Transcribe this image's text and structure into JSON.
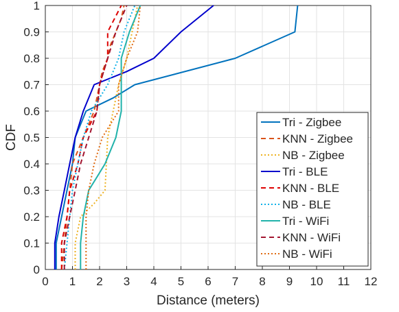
{
  "chart_data": {
    "type": "line",
    "title": "",
    "xlabel": "Distance (meters)",
    "ylabel": "CDF",
    "xlim": [
      0,
      12
    ],
    "ylim": [
      0,
      1
    ],
    "xticks": [
      "0",
      "1",
      "2",
      "3",
      "4",
      "5",
      "6",
      "7",
      "8",
      "9",
      "10",
      "11",
      "12"
    ],
    "yticks": [
      "0",
      "0.1",
      "0.2",
      "0.3",
      "0.4",
      "0.5",
      "0.6",
      "0.7",
      "0.8",
      "0.9",
      "1"
    ],
    "grid": true,
    "legend_position": "lower-right",
    "series": [
      {
        "name": "Tri - Zigbee",
        "color": "#0072BD",
        "dash": "solid",
        "points": [
          [
            0.4,
            0.0
          ],
          [
            0.4,
            0.1
          ],
          [
            0.6,
            0.2
          ],
          [
            0.8,
            0.3
          ],
          [
            1.0,
            0.4
          ],
          [
            1.1,
            0.5
          ],
          [
            1.5,
            0.6
          ],
          [
            2.5,
            0.65
          ],
          [
            3.3,
            0.7
          ],
          [
            7.0,
            0.8
          ],
          [
            9.2,
            0.9
          ],
          [
            9.3,
            1.0
          ]
        ]
      },
      {
        "name": "KNN - Zigbee",
        "color": "#D95319",
        "dash": "dashed",
        "points": [
          [
            0.6,
            0.0
          ],
          [
            0.7,
            0.1
          ],
          [
            0.8,
            0.2
          ],
          [
            0.9,
            0.3
          ],
          [
            1.0,
            0.4
          ],
          [
            1.4,
            0.5
          ],
          [
            1.6,
            0.55
          ],
          [
            1.8,
            0.6
          ],
          [
            2.0,
            0.7
          ],
          [
            2.1,
            0.75
          ],
          [
            2.3,
            0.8
          ],
          [
            2.4,
            0.85
          ],
          [
            2.6,
            0.9
          ],
          [
            2.8,
            0.95
          ],
          [
            2.9,
            1.0
          ]
        ]
      },
      {
        "name": "NB - Zigbee",
        "color": "#EDB120",
        "dash": "dotted",
        "points": [
          [
            1.1,
            0.0
          ],
          [
            1.1,
            0.1
          ],
          [
            1.3,
            0.2
          ],
          [
            1.8,
            0.25
          ],
          [
            2.2,
            0.3
          ],
          [
            2.3,
            0.5
          ],
          [
            2.5,
            0.6
          ],
          [
            2.7,
            0.7
          ],
          [
            3.0,
            0.8
          ],
          [
            3.2,
            0.9
          ],
          [
            3.4,
            1.0
          ]
        ]
      },
      {
        "name": "Tri - BLE",
        "color": "#0000CC",
        "dash": "solid",
        "points": [
          [
            0.35,
            0.0
          ],
          [
            0.35,
            0.1
          ],
          [
            0.5,
            0.2
          ],
          [
            0.7,
            0.3
          ],
          [
            0.9,
            0.4
          ],
          [
            1.1,
            0.5
          ],
          [
            1.4,
            0.6
          ],
          [
            1.8,
            0.7
          ],
          [
            3.0,
            0.75
          ],
          [
            4.0,
            0.8
          ],
          [
            5.0,
            0.9
          ],
          [
            6.2,
            1.0
          ]
        ]
      },
      {
        "name": "KNN - BLE",
        "color": "#DD0000",
        "dash": "dashed",
        "points": [
          [
            0.6,
            0.0
          ],
          [
            0.6,
            0.1
          ],
          [
            0.8,
            0.2
          ],
          [
            0.9,
            0.3
          ],
          [
            1.2,
            0.4
          ],
          [
            1.4,
            0.5
          ],
          [
            1.9,
            0.6
          ],
          [
            2.0,
            0.7
          ],
          [
            2.3,
            0.8
          ],
          [
            2.3,
            0.9
          ],
          [
            2.8,
            1.0
          ]
        ]
      },
      {
        "name": "NB - BLE",
        "color": "#0BB0E8",
        "dash": "dotted",
        "points": [
          [
            0.7,
            0.0
          ],
          [
            0.8,
            0.1
          ],
          [
            0.9,
            0.2
          ],
          [
            1.0,
            0.3
          ],
          [
            1.2,
            0.4
          ],
          [
            1.4,
            0.5
          ],
          [
            1.7,
            0.6
          ],
          [
            2.3,
            0.7
          ],
          [
            2.7,
            0.8
          ],
          [
            2.9,
            0.9
          ],
          [
            3.3,
            1.0
          ]
        ]
      },
      {
        "name": "Tri - WiFi",
        "color": "#20B2AA",
        "dash": "solid",
        "points": [
          [
            1.3,
            0.0
          ],
          [
            1.3,
            0.1
          ],
          [
            1.4,
            0.2
          ],
          [
            1.6,
            0.3
          ],
          [
            1.9,
            0.35
          ],
          [
            2.2,
            0.4
          ],
          [
            2.6,
            0.5
          ],
          [
            2.8,
            0.6
          ],
          [
            2.8,
            0.7
          ],
          [
            2.8,
            0.8
          ],
          [
            3.1,
            0.9
          ],
          [
            3.5,
            1.0
          ]
        ]
      },
      {
        "name": "KNN - WiFi",
        "color": "#A2142F",
        "dash": "dashed",
        "points": [
          [
            0.7,
            0.0
          ],
          [
            0.7,
            0.1
          ],
          [
            0.9,
            0.2
          ],
          [
            1.1,
            0.3
          ],
          [
            1.3,
            0.4
          ],
          [
            1.6,
            0.5
          ],
          [
            1.9,
            0.6
          ],
          [
            2.0,
            0.7
          ],
          [
            2.3,
            0.8
          ],
          [
            2.6,
            0.9
          ],
          [
            3.0,
            1.0
          ]
        ]
      },
      {
        "name": "NB - WiFi",
        "color": "#E06A10",
        "dash": "dotted",
        "points": [
          [
            1.5,
            0.0
          ],
          [
            1.5,
            0.1
          ],
          [
            1.5,
            0.2
          ],
          [
            1.6,
            0.3
          ],
          [
            1.8,
            0.4
          ],
          [
            2.1,
            0.5
          ],
          [
            2.7,
            0.6
          ],
          [
            2.7,
            0.7
          ],
          [
            3.0,
            0.8
          ],
          [
            3.4,
            0.9
          ],
          [
            3.5,
            1.0
          ]
        ]
      }
    ]
  }
}
